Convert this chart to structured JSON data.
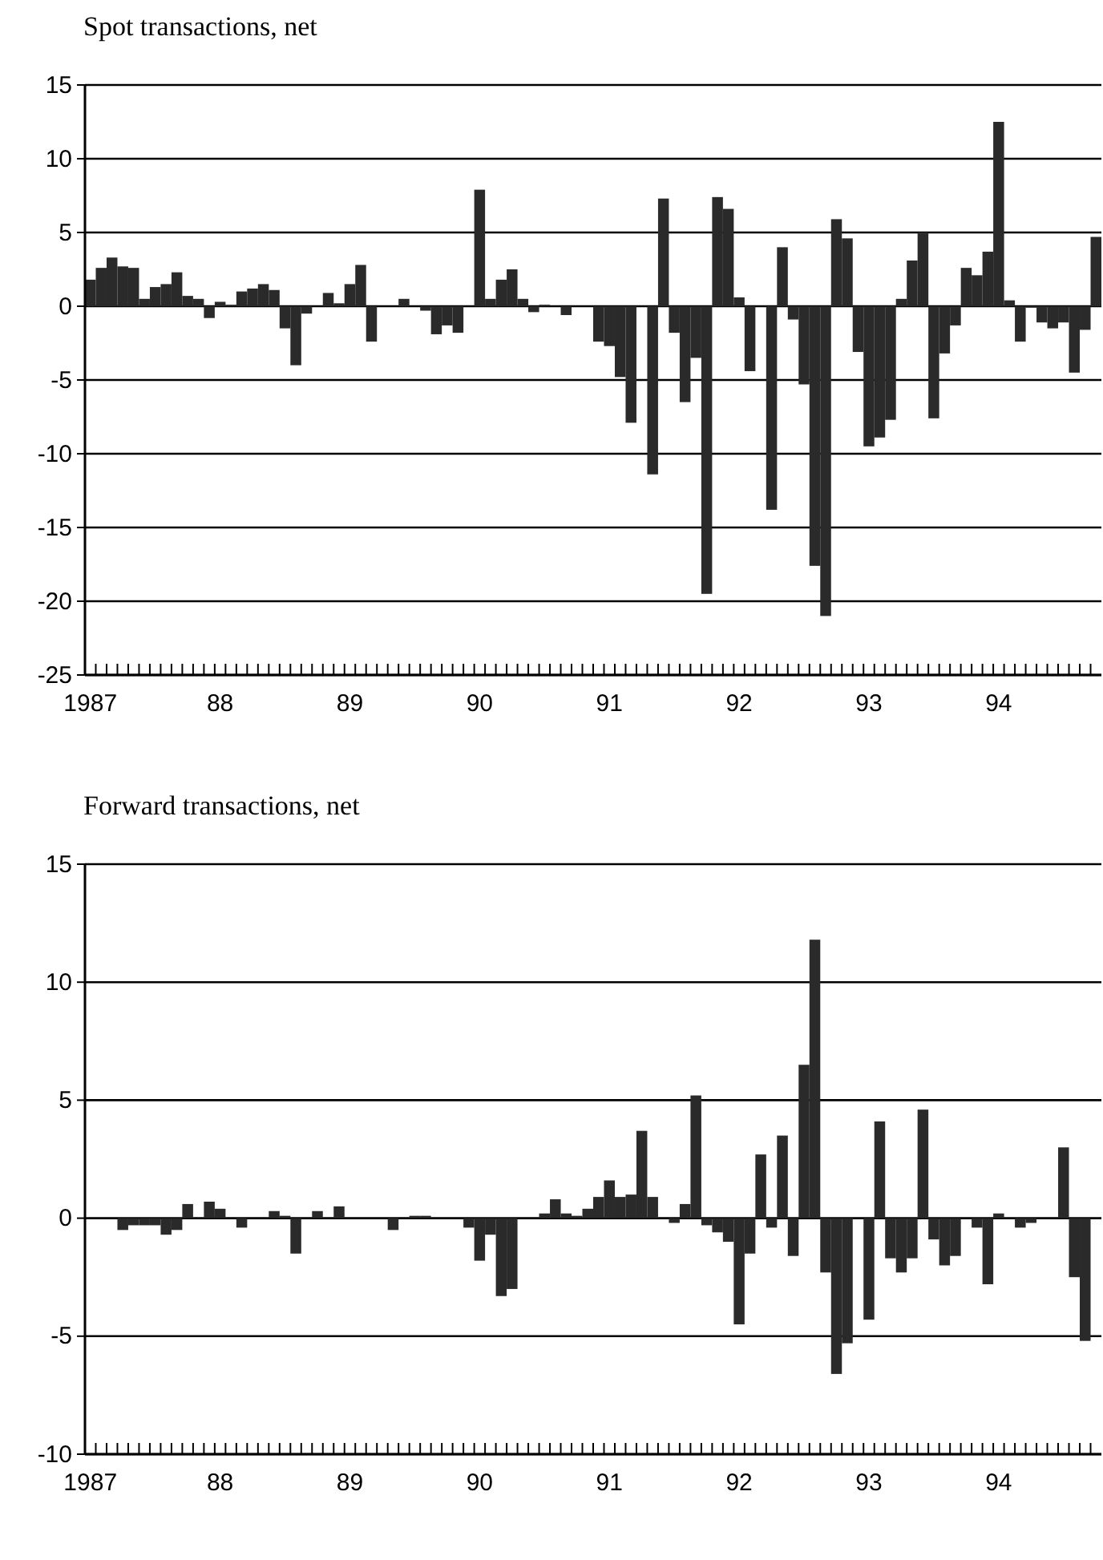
{
  "chart_data": [
    {
      "type": "bar",
      "title": "Spot transactions, net",
      "color": "#2a2a2a",
      "grid": "y",
      "ylim": [
        -25,
        15
      ],
      "yticks": [
        -25,
        -20,
        -15,
        -10,
        -5,
        0,
        5,
        10,
        15
      ],
      "categories": [
        "1987",
        null,
        null,
        null,
        null,
        null,
        null,
        null,
        null,
        null,
        null,
        null,
        "88",
        null,
        null,
        null,
        null,
        null,
        null,
        null,
        null,
        null,
        null,
        null,
        "89",
        null,
        null,
        null,
        null,
        null,
        null,
        null,
        null,
        null,
        null,
        null,
        "90",
        null,
        null,
        null,
        null,
        null,
        null,
        null,
        null,
        null,
        null,
        null,
        "91",
        null,
        null,
        null,
        null,
        null,
        null,
        null,
        null,
        null,
        null,
        null,
        "92",
        null,
        null,
        null,
        null,
        null,
        null,
        null,
        null,
        null,
        null,
        null,
        "93",
        null,
        null,
        null,
        null,
        null,
        null,
        null,
        null,
        null,
        null,
        null,
        "94",
        null,
        null,
        null,
        null,
        null,
        null,
        null,
        null,
        null
      ],
      "values": [
        1.8,
        2.6,
        3.3,
        2.7,
        2.6,
        0.5,
        1.3,
        1.5,
        2.3,
        0.7,
        0.5,
        -0.8,
        0.3,
        0.1,
        1.0,
        1.2,
        1.5,
        1.1,
        -1.5,
        -4.0,
        -0.5,
        0,
        0.9,
        0.2,
        1.5,
        2.8,
        -2.4,
        0,
        0,
        0.5,
        0,
        -0.3,
        -1.9,
        -1.3,
        -1.8,
        0,
        7.9,
        0.5,
        1.8,
        2.5,
        0.5,
        -0.4,
        0.1,
        0,
        -0.6,
        0,
        0,
        -2.4,
        -2.7,
        -4.8,
        -7.9,
        0,
        -11.4,
        7.3,
        -1.8,
        -6.5,
        -3.5,
        -19.5,
        7.4,
        6.6,
        0.6,
        -4.4,
        0,
        -13.8,
        4.0,
        -0.9,
        -5.3,
        -17.6,
        -21,
        5.9,
        4.6,
        -3.1,
        -9.5,
        -8.9,
        -7.7,
        0.5,
        3.1,
        5.0,
        -7.6,
        -3.2,
        -1.3,
        2.6,
        2.1,
        3.7,
        12.5,
        0.4,
        -2.4,
        -0.1,
        -1.1,
        -1.5,
        -1.1,
        -4.5,
        -1.6,
        4.7
      ]
    },
    {
      "type": "bar",
      "title": "Forward transactions, net",
      "color": "#2a2a2a",
      "grid": "y",
      "ylim": [
        -10,
        15
      ],
      "yticks": [
        -10,
        -5,
        0,
        5,
        10,
        15
      ],
      "categories": [
        "1987",
        null,
        null,
        null,
        null,
        null,
        null,
        null,
        null,
        null,
        null,
        null,
        "88",
        null,
        null,
        null,
        null,
        null,
        null,
        null,
        null,
        null,
        null,
        null,
        "89",
        null,
        null,
        null,
        null,
        null,
        null,
        null,
        null,
        null,
        null,
        null,
        "90",
        null,
        null,
        null,
        null,
        null,
        null,
        null,
        null,
        null,
        null,
        null,
        "91",
        null,
        null,
        null,
        null,
        null,
        null,
        null,
        null,
        null,
        null,
        null,
        "92",
        null,
        null,
        null,
        null,
        null,
        null,
        null,
        null,
        null,
        null,
        null,
        "93",
        null,
        null,
        null,
        null,
        null,
        null,
        null,
        null,
        null,
        null,
        null,
        "94",
        null,
        null,
        null,
        null,
        null,
        null,
        null,
        null,
        null
      ],
      "values": [
        0,
        0,
        0,
        -0.5,
        -0.3,
        -0.3,
        -0.3,
        -0.7,
        -0.5,
        0.6,
        0,
        0.7,
        0.4,
        0,
        -0.4,
        0,
        0,
        0.3,
        0.1,
        -1.5,
        0,
        0.3,
        0,
        0.5,
        0,
        0,
        0,
        0,
        -0.5,
        0,
        0.1,
        0.1,
        0,
        0,
        0,
        -0.4,
        -1.8,
        -0.7,
        -3.3,
        -3.0,
        0,
        0,
        0.2,
        0.8,
        0.2,
        0.1,
        0.4,
        0.9,
        1.6,
        0.9,
        1.0,
        3.7,
        0.9,
        0,
        -0.2,
        0.6,
        5.2,
        -0.3,
        -0.6,
        -1.0,
        -4.5,
        -1.5,
        2.7,
        -0.4,
        3.5,
        -1.6,
        6.5,
        11.8,
        -2.3,
        -6.6,
        -5.3,
        0,
        -4.3,
        4.1,
        -1.7,
        -2.3,
        -1.7,
        4.6,
        -0.9,
        -2.0,
        -1.6,
        0,
        -0.4,
        -2.8,
        0.2,
        0,
        -0.4,
        -0.2,
        0,
        0,
        3.0,
        -2.5,
        -5.2,
        0
      ]
    }
  ]
}
